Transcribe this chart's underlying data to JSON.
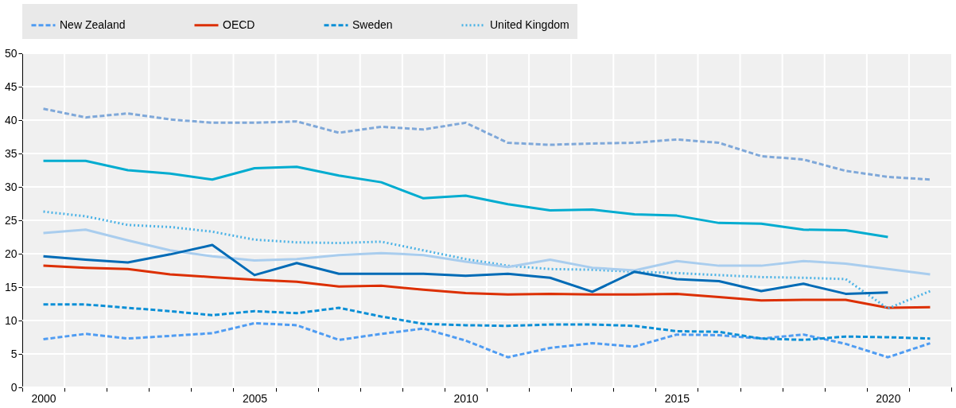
{
  "chart_data": {
    "type": "line",
    "categories": [
      "2000",
      null,
      null,
      null,
      null,
      "2005",
      null,
      null,
      null,
      null,
      "2010",
      null,
      null,
      null,
      null,
      "2015",
      null,
      null,
      null,
      null,
      "2020",
      null
    ],
    "series": [
      {
        "name": "New Zealand",
        "color": "#4f9cf2",
        "line_style": "dashed",
        "values": [
          7.2,
          8.0,
          7.3,
          7.7,
          8.1,
          9.6,
          9.3,
          7.1,
          8.0,
          8.8,
          7.0,
          4.5,
          5.9,
          6.6,
          6.1,
          7.9,
          7.8,
          7.3,
          7.9,
          6.5,
          4.5,
          6.6
        ]
      },
      {
        "name": "OECD",
        "color": "#dc2f02",
        "line_style": "solid",
        "values": [
          18.2,
          17.9,
          17.7,
          16.9,
          16.5,
          16.1,
          15.8,
          15.1,
          15.2,
          14.6,
          14.1,
          13.9,
          14.0,
          13.9,
          13.9,
          14.0,
          13.5,
          13.0,
          13.1,
          13.1,
          11.9,
          12.0
        ]
      },
      {
        "name": "Sweden",
        "color": "#0b8fd6",
        "line_style": "dashed",
        "values": [
          12.4,
          12.4,
          11.9,
          11.4,
          10.8,
          11.4,
          11.1,
          11.9,
          10.6,
          9.5,
          9.3,
          9.2,
          9.4,
          9.4,
          9.2,
          8.4,
          8.3,
          7.3,
          7.1,
          7.6,
          7.5,
          7.3
        ]
      },
      {
        "name": "United Kingdom",
        "color": "#4db3e6",
        "line_style": "dotted",
        "values": [
          26.3,
          25.6,
          24.3,
          24.0,
          23.3,
          22.1,
          21.7,
          21.6,
          21.8,
          20.5,
          19.2,
          18.2,
          17.7,
          17.6,
          17.3,
          17.1,
          16.8,
          16.5,
          16.4,
          16.2,
          11.8,
          14.4
        ]
      },
      {
        "color": "#7fa8d9",
        "line_style": "dashed",
        "values": [
          41.7,
          40.4,
          41.0,
          40.1,
          39.6,
          39.6,
          39.8,
          38.1,
          39.0,
          38.6,
          39.6,
          36.6,
          36.3,
          36.5,
          36.6,
          37.1,
          36.6,
          34.6,
          34.1,
          32.4,
          31.5,
          31.1
        ]
      },
      {
        "color": "#00acd0",
        "line_style": "solid",
        "values": [
          33.9,
          33.9,
          32.5,
          32.0,
          31.1,
          32.8,
          33.0,
          31.7,
          30.7,
          28.3,
          28.7,
          27.4,
          26.5,
          26.6,
          25.9,
          25.7,
          24.6,
          24.5,
          23.6,
          23.5,
          22.5,
          null
        ]
      },
      {
        "color": "#a9cdee",
        "line_style": "solid",
        "values": [
          23.1,
          23.6,
          22.0,
          20.5,
          19.6,
          19.0,
          19.2,
          19.8,
          20.1,
          19.8,
          18.8,
          18.0,
          19.1,
          17.9,
          17.5,
          18.9,
          18.2,
          18.2,
          18.9,
          18.5,
          17.7,
          16.9
        ]
      },
      {
        "color": "#006bb6",
        "line_style": "solid",
        "values": [
          19.6,
          19.1,
          18.7,
          19.9,
          21.3,
          16.8,
          18.6,
          17.0,
          17.0,
          17.0,
          16.7,
          17.0,
          16.4,
          14.3,
          17.3,
          16.2,
          15.9,
          14.4,
          15.5,
          14.0,
          14.2,
          null
        ]
      }
    ],
    "ylim": [
      0,
      50
    ],
    "yticks": [
      0,
      5,
      10,
      15,
      20,
      25,
      30,
      35,
      40,
      45,
      50
    ],
    "grid": true,
    "legend": "top"
  }
}
